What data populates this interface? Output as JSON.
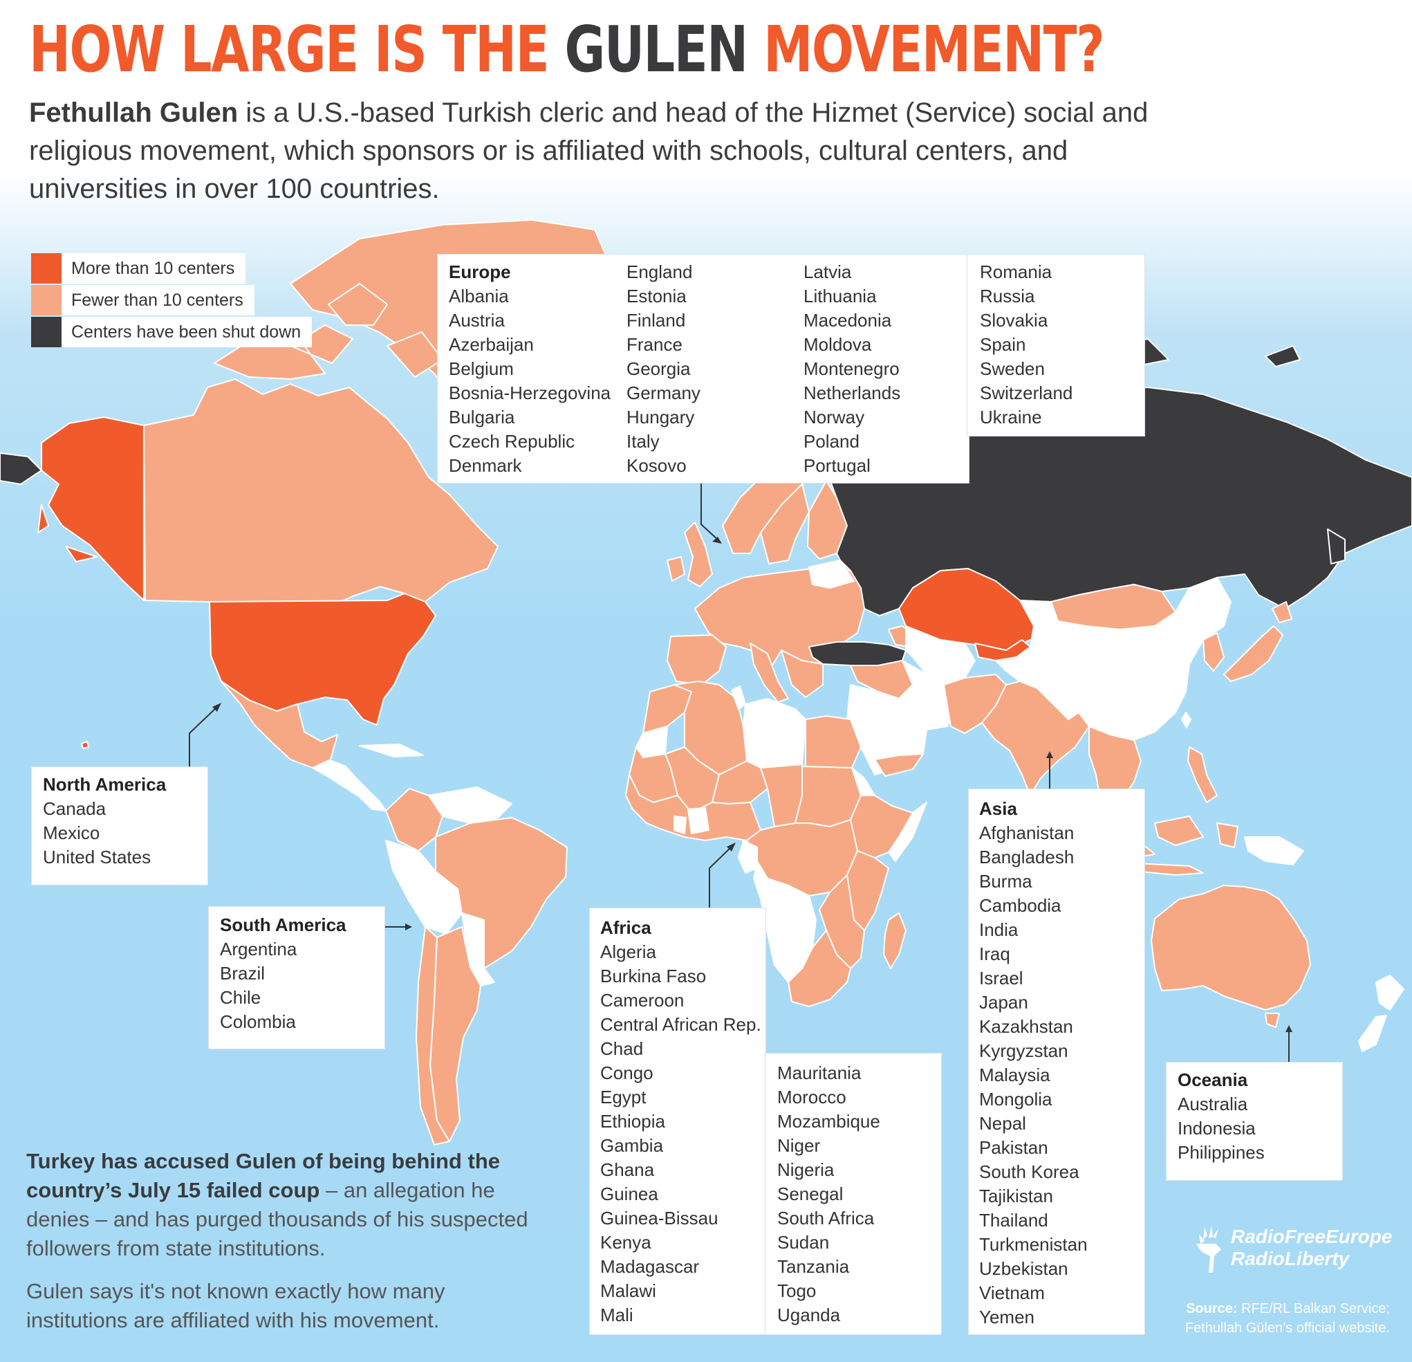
{
  "title": {
    "part1": "HOW LARGE IS THE ",
    "part2": "GULEN",
    "part3": " MOVEMENT?"
  },
  "intro": {
    "bold": "Fethullah Gulen",
    "text": " is a U.S.-based Turkish cleric and head of the Hizmet (Service) social and religious movement, which sponsors or is affiliated with schools, cultural centers, and universities in over 100 countries."
  },
  "colors": {
    "more": "#f15a2b",
    "fewer": "#f6a884",
    "shut": "#3b3b3d",
    "none": "#ffffff",
    "ocean": "#a9dbf6"
  },
  "legend": [
    {
      "label": "More than 10 centers",
      "color": "#f15a2b"
    },
    {
      "label": "Fewer than 10 centers",
      "color": "#f6a884"
    },
    {
      "label": "Centers have been shut down",
      "color": "#3b3b3d"
    }
  ],
  "regions": {
    "europe": {
      "title": "Europe",
      "countries": [
        "Albania",
        "Austria",
        "Azerbaijan",
        "Belgium",
        "Bosnia-Herzegovina",
        "Bulgaria",
        "Czech Republic",
        "Denmark",
        "England",
        "Estonia",
        "Finland",
        "France",
        "Georgia",
        "Germany",
        "Hungary",
        "Italy",
        "Kosovo",
        "Latvia",
        "Lithuania",
        "Macedonia",
        "Moldova",
        "Montenegro",
        "Netherlands",
        "Norway",
        "Poland",
        "Portugal",
        "Romania",
        "Russia",
        "Slovakia",
        "Spain",
        "Sweden",
        "Switzerland",
        "Ukraine"
      ]
    },
    "north_america": {
      "title": "North America",
      "countries": [
        "Canada",
        "Mexico",
        "United States"
      ]
    },
    "south_america": {
      "title": "South America",
      "countries": [
        "Argentina",
        "Brazil",
        "Chile",
        "Colombia"
      ]
    },
    "africa": {
      "title": "Africa",
      "countries": [
        "Algeria",
        "Burkina Faso",
        "Cameroon",
        "Central African Rep.",
        "Chad",
        "Congo",
        "Egypt",
        "Ethiopia",
        "Gambia",
        "Ghana",
        "Guinea",
        "Guinea-Bissau",
        "Kenya",
        "Madagascar",
        "Malawi",
        "Mali",
        "Mauritania",
        "Morocco",
        "Mozambique",
        "Niger",
        "Nigeria",
        "Senegal",
        "South Africa",
        "Sudan",
        "Tanzania",
        "Togo",
        "Uganda"
      ]
    },
    "asia": {
      "title": "Asia",
      "countries": [
        "Afghanistan",
        "Bangladesh",
        "Burma",
        "Cambodia",
        "India",
        "Iraq",
        "Israel",
        "Japan",
        "Kazakhstan",
        "Kyrgyzstan",
        "Malaysia",
        "Mongolia",
        "Nepal",
        "Pakistan",
        "South Korea",
        "Tajikistan",
        "Thailand",
        "Turkmenistan",
        "Uzbekistan",
        "Vietnam",
        "Yemen"
      ]
    },
    "oceania": {
      "title": "Oceania",
      "countries": [
        "Australia",
        "Indonesia",
        "Philippines"
      ]
    }
  },
  "bottom": {
    "p1_bold": "Turkey has accused Gulen of being behind the country’s July 15 failed coup",
    "p1_text": " – an allegation he denies – and has purged thousands of his suspected followers from state institutions.",
    "p2": "Gulen says it's not known exactly how many institutions are affiliated with his movement."
  },
  "logo": {
    "line1": "RadioFreeEurope",
    "line2": "RadioLiberty"
  },
  "source": {
    "bold": "Source:",
    "line1": " RFE/RL Balkan Service;",
    "line2": "Fethullah Gülen’s official website."
  }
}
